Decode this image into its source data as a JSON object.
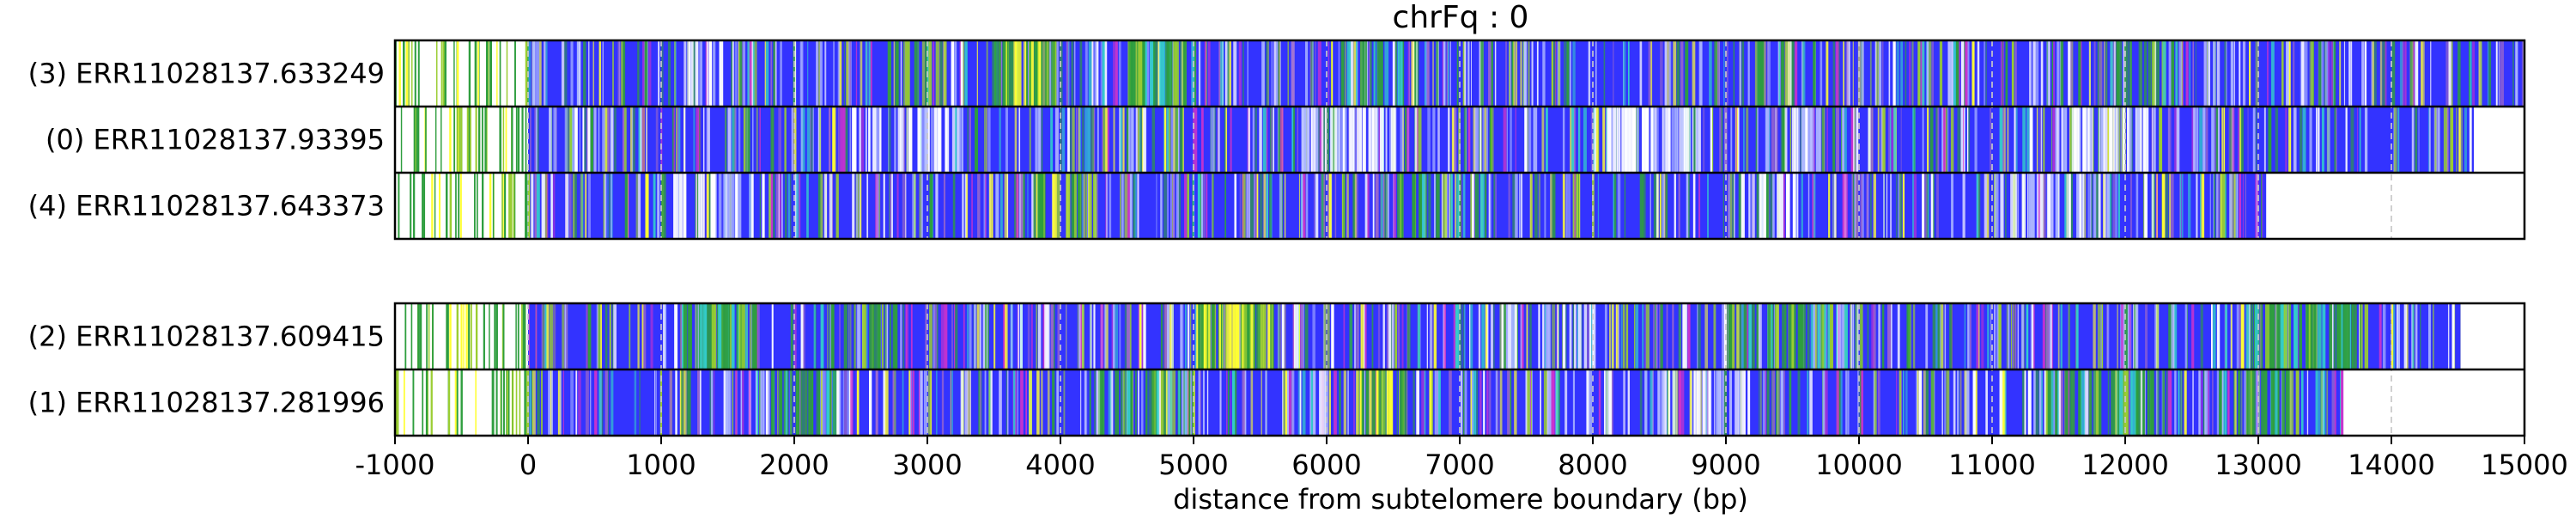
{
  "chart_data": {
    "type": "heatmap",
    "title": "chrFq : 0",
    "xlabel": "distance from subtelomere boundary (bp)",
    "ylabel": "",
    "xlim": [
      -1000,
      15000
    ],
    "xticks": [
      -1000,
      0,
      1000,
      2000,
      3000,
      4000,
      5000,
      6000,
      7000,
      8000,
      9000,
      10000,
      11000,
      12000,
      13000,
      14000,
      15000
    ],
    "grid": "vertical dashed at 1000 bp intervals",
    "background_color": "#3333ff",
    "subtelomere_region_color": "#ffffff",
    "tract_colors": {
      "white": "#ffffff",
      "green": "#2e9e3e",
      "lightgreen": "#9acd32",
      "cyan": "#33cccc",
      "yellow": "#ffff33",
      "purple": "#9966cc",
      "lightblue": "#aab4ff",
      "magenta": "#cc33cc"
    },
    "groups": [
      {
        "reads": [
          {
            "label": "(3) ERR11028137.633249",
            "end": 14990,
            "hotspots": [
              [
                -1000,
                0,
                0.9,
                "subtel"
              ],
              [
                3500,
                3950,
                0.6,
                "yellow"
              ],
              [
                4500,
                5000,
                0.6,
                "green"
              ],
              [
                2700,
                3100,
                0.3,
                "green"
              ],
              [
                9200,
                9500,
                0.3,
                "green"
              ],
              [
                1200,
                1600,
                0.25,
                "white"
              ],
              [
                6200,
                6600,
                0.3,
                "green"
              ],
              [
                12000,
                12400,
                0.25,
                "green"
              ]
            ]
          },
          {
            "label": "(0) ERR11028137.93395",
            "end": 14620,
            "hotspots": [
              [
                -1000,
                0,
                0.9,
                "subtel"
              ],
              [
                8100,
                8800,
                0.7,
                "white"
              ],
              [
                5800,
                6500,
                0.5,
                "white"
              ],
              [
                11500,
                12200,
                0.5,
                "white"
              ],
              [
                2400,
                3100,
                0.3,
                "white"
              ],
              [
                9400,
                9700,
                0.4,
                "white"
              ]
            ]
          },
          {
            "label": "(4) ERR11028137.643373",
            "end": 13060,
            "hotspots": [
              [
                -1000,
                0,
                0.9,
                "subtel"
              ],
              [
                3800,
                4300,
                0.45,
                "yellow"
              ],
              [
                1100,
                1700,
                0.3,
                "white"
              ],
              [
                11000,
                11800,
                0.3,
                "white"
              ],
              [
                6500,
                7200,
                0.25,
                "green"
              ],
              [
                9000,
                9600,
                0.2,
                "white"
              ]
            ]
          }
        ]
      },
      {
        "reads": [
          {
            "label": "(2) ERR11028137.609415",
            "end": 14520,
            "hotspots": [
              [
                -1000,
                0,
                0.9,
                "subtel"
              ],
              [
                1100,
                1700,
                0.6,
                "green"
              ],
              [
                5000,
                5600,
                0.7,
                "yellow"
              ],
              [
                12900,
                13800,
                0.6,
                "green"
              ],
              [
                9000,
                9800,
                0.3,
                "green"
              ],
              [
                2200,
                2800,
                0.25,
                "green"
              ],
              [
                7200,
                8000,
                0.2,
                "white"
              ]
            ]
          },
          {
            "label": "(1) ERR11028137.281996",
            "end": 13640,
            "hotspots": [
              [
                -1000,
                0,
                0.9,
                "subtel"
              ],
              [
                6300,
                6600,
                0.6,
                "yellow"
              ],
              [
                1800,
                2300,
                0.45,
                "green"
              ],
              [
                11400,
                12200,
                0.45,
                "green"
              ],
              [
                12900,
                13300,
                0.5,
                "green"
              ],
              [
                4200,
                5000,
                0.3,
                "green"
              ],
              [
                8500,
                9200,
                0.2,
                "white"
              ]
            ]
          }
        ]
      }
    ]
  }
}
